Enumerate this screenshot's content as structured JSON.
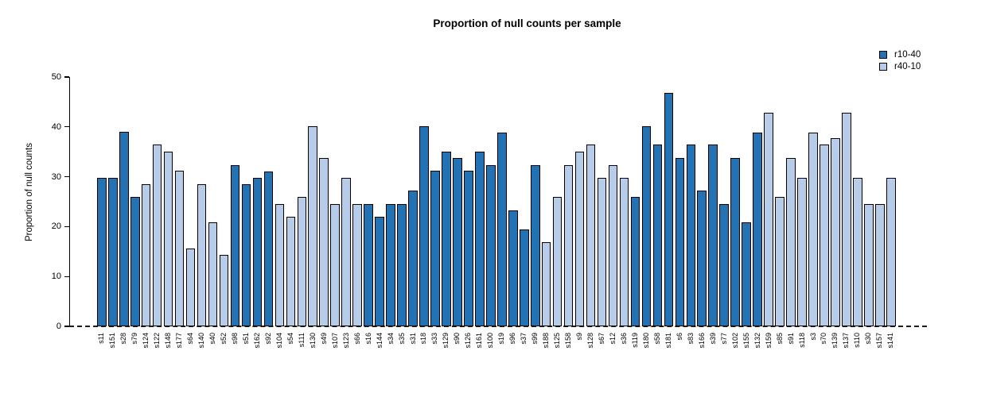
{
  "title": "Proportion of null counts per sample",
  "y_axis": {
    "label": "Proportion of null counts",
    "ticks": [
      0,
      10,
      20,
      30,
      40,
      50
    ],
    "max": 50
  },
  "legend": {
    "position": "top-right",
    "items": [
      {
        "name": "r10-40",
        "color": "#2272B4"
      },
      {
        "name": "r40-10",
        "color": "#B6CCE8"
      }
    ]
  },
  "chart_data": {
    "type": "bar",
    "title": "Proportion of null counts per sample",
    "xlabel": "",
    "ylabel": "Proportion of null counts",
    "ylim": [
      0,
      50
    ],
    "grid": false,
    "zero_line_style": "dashed",
    "bar_border_color": "#000000",
    "series_colors": {
      "r10-40": "#2272B4",
      "r40-10": "#B6CCE8"
    },
    "bars": [
      {
        "sample": "s11",
        "value": 29.8,
        "group": "r10-40"
      },
      {
        "sample": "s151",
        "value": 29.8,
        "group": "r10-40"
      },
      {
        "sample": "s28",
        "value": 39.0,
        "group": "r10-40"
      },
      {
        "sample": "s79",
        "value": 26.0,
        "group": "r10-40"
      },
      {
        "sample": "s124",
        "value": 28.5,
        "group": "r40-10"
      },
      {
        "sample": "s122",
        "value": 36.4,
        "group": "r40-10"
      },
      {
        "sample": "s148",
        "value": 35.0,
        "group": "r40-10"
      },
      {
        "sample": "s177",
        "value": 31.2,
        "group": "r40-10"
      },
      {
        "sample": "s64",
        "value": 15.6,
        "group": "r40-10"
      },
      {
        "sample": "s140",
        "value": 28.5,
        "group": "r40-10"
      },
      {
        "sample": "s40",
        "value": 20.8,
        "group": "r40-10"
      },
      {
        "sample": "s52",
        "value": 14.3,
        "group": "r40-10"
      },
      {
        "sample": "s98",
        "value": 32.4,
        "group": "r10-40"
      },
      {
        "sample": "s51",
        "value": 28.5,
        "group": "r10-40"
      },
      {
        "sample": "s162",
        "value": 29.8,
        "group": "r10-40"
      },
      {
        "sample": "s92",
        "value": 31.1,
        "group": "r10-40"
      },
      {
        "sample": "s104",
        "value": 24.5,
        "group": "r40-10"
      },
      {
        "sample": "s54",
        "value": 22.0,
        "group": "r40-10"
      },
      {
        "sample": "s111",
        "value": 25.9,
        "group": "r40-10"
      },
      {
        "sample": "s130",
        "value": 40.2,
        "group": "r40-10"
      },
      {
        "sample": "s49",
        "value": 33.8,
        "group": "r40-10"
      },
      {
        "sample": "s107",
        "value": 24.5,
        "group": "r40-10"
      },
      {
        "sample": "s123",
        "value": 29.8,
        "group": "r40-10"
      },
      {
        "sample": "s66",
        "value": 24.5,
        "group": "r40-10"
      },
      {
        "sample": "s16",
        "value": 24.5,
        "group": "r10-40"
      },
      {
        "sample": "s144",
        "value": 22.0,
        "group": "r10-40"
      },
      {
        "sample": "s34",
        "value": 24.5,
        "group": "r10-40"
      },
      {
        "sample": "s35",
        "value": 24.5,
        "group": "r10-40"
      },
      {
        "sample": "s31",
        "value": 27.2,
        "group": "r10-40"
      },
      {
        "sample": "s18",
        "value": 40.2,
        "group": "r10-40"
      },
      {
        "sample": "s33",
        "value": 31.2,
        "group": "r10-40"
      },
      {
        "sample": "s129",
        "value": 35.0,
        "group": "r10-40"
      },
      {
        "sample": "s90",
        "value": 33.7,
        "group": "r10-40"
      },
      {
        "sample": "s126",
        "value": 31.2,
        "group": "r10-40"
      },
      {
        "sample": "s161",
        "value": 35.0,
        "group": "r10-40"
      },
      {
        "sample": "s100",
        "value": 32.4,
        "group": "r10-40"
      },
      {
        "sample": "s19",
        "value": 38.9,
        "group": "r10-40"
      },
      {
        "sample": "s96",
        "value": 23.3,
        "group": "r10-40"
      },
      {
        "sample": "s37",
        "value": 19.5,
        "group": "r10-40"
      },
      {
        "sample": "s99",
        "value": 32.4,
        "group": "r10-40"
      },
      {
        "sample": "s188",
        "value": 16.8,
        "group": "r40-10"
      },
      {
        "sample": "s125",
        "value": 25.9,
        "group": "r40-10"
      },
      {
        "sample": "s158",
        "value": 32.4,
        "group": "r40-10"
      },
      {
        "sample": "s9",
        "value": 35.0,
        "group": "r40-10"
      },
      {
        "sample": "s128",
        "value": 36.4,
        "group": "r40-10"
      },
      {
        "sample": "s67",
        "value": 29.8,
        "group": "r40-10"
      },
      {
        "sample": "s12",
        "value": 32.4,
        "group": "r40-10"
      },
      {
        "sample": "s36",
        "value": 29.8,
        "group": "r40-10"
      },
      {
        "sample": "s119",
        "value": 25.9,
        "group": "r10-40"
      },
      {
        "sample": "s180",
        "value": 40.2,
        "group": "r10-40"
      },
      {
        "sample": "s58",
        "value": 36.4,
        "group": "r10-40"
      },
      {
        "sample": "s181",
        "value": 46.8,
        "group": "r10-40"
      },
      {
        "sample": "s6",
        "value": 33.7,
        "group": "r10-40"
      },
      {
        "sample": "s83",
        "value": 36.4,
        "group": "r10-40"
      },
      {
        "sample": "s166",
        "value": 27.2,
        "group": "r10-40"
      },
      {
        "sample": "s39",
        "value": 36.4,
        "group": "r10-40"
      },
      {
        "sample": "s77",
        "value": 24.5,
        "group": "r10-40"
      },
      {
        "sample": "s102",
        "value": 33.7,
        "group": "r10-40"
      },
      {
        "sample": "s155",
        "value": 20.8,
        "group": "r10-40"
      },
      {
        "sample": "s132",
        "value": 38.9,
        "group": "r10-40"
      },
      {
        "sample": "s159",
        "value": 42.8,
        "group": "r40-10"
      },
      {
        "sample": "s85",
        "value": 25.9,
        "group": "r40-10"
      },
      {
        "sample": "s91",
        "value": 33.7,
        "group": "r40-10"
      },
      {
        "sample": "s118",
        "value": 29.8,
        "group": "r40-10"
      },
      {
        "sample": "s3",
        "value": 38.9,
        "group": "r40-10"
      },
      {
        "sample": "s70",
        "value": 36.4,
        "group": "r40-10"
      },
      {
        "sample": "s139",
        "value": 37.7,
        "group": "r40-10"
      },
      {
        "sample": "s137",
        "value": 42.8,
        "group": "r40-10"
      },
      {
        "sample": "s110",
        "value": 29.8,
        "group": "r40-10"
      },
      {
        "sample": "s30",
        "value": 24.5,
        "group": "r40-10"
      },
      {
        "sample": "s157",
        "value": 24.5,
        "group": "r40-10"
      },
      {
        "sample": "s141",
        "value": 29.8,
        "group": "r40-10"
      }
    ]
  }
}
